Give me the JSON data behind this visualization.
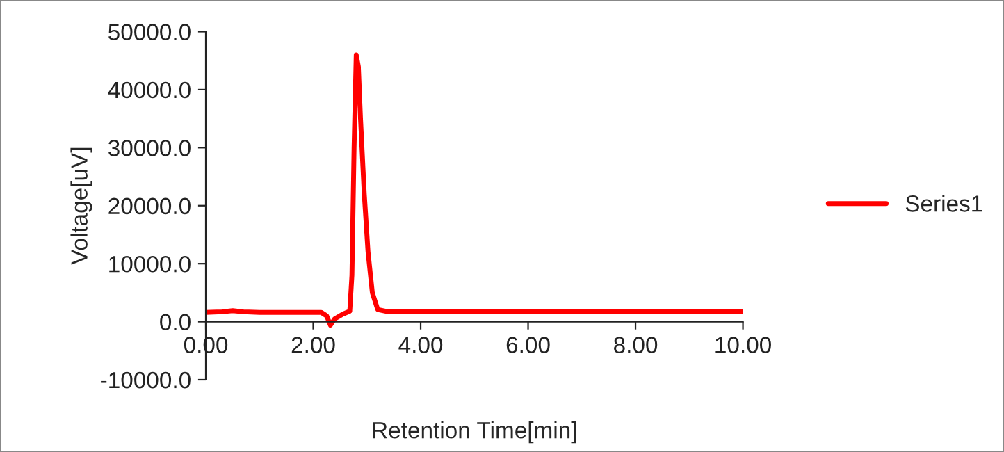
{
  "chart_data": {
    "type": "line",
    "xlabel": "Retention Time[min]",
    "ylabel": "Voltage[uV]",
    "x": [
      0,
      0.3,
      0.5,
      0.7,
      1.0,
      2.15,
      2.25,
      2.32,
      2.4,
      2.55,
      2.68,
      2.72,
      2.76,
      2.8,
      2.84,
      2.88,
      2.95,
      3.02,
      3.1,
      3.2,
      3.4,
      4.0,
      6.0,
      8.0,
      10.0
    ],
    "series": [
      {
        "name": "Series1",
        "color": "#ff0000",
        "values": [
          1600,
          1700,
          1900,
          1700,
          1600,
          1600,
          1000,
          -600,
          500,
          1300,
          1800,
          8000,
          30000,
          46000,
          44000,
          35000,
          22000,
          12000,
          5000,
          2100,
          1700,
          1700,
          1800,
          1800,
          1800
        ]
      }
    ],
    "xlim": [
      0,
      10
    ],
    "ylim": [
      -10000,
      50000
    ],
    "xticks": [
      {
        "value": 0,
        "label": "0.00"
      },
      {
        "value": 2,
        "label": "2.00"
      },
      {
        "value": 4,
        "label": "4.00"
      },
      {
        "value": 6,
        "label": "6.00"
      },
      {
        "value": 8,
        "label": "8.00"
      },
      {
        "value": 10,
        "label": "10.00"
      }
    ],
    "yticks": [
      {
        "value": -10000,
        "label": "-10000.0"
      },
      {
        "value": 0,
        "label": "0.0"
      },
      {
        "value": 10000,
        "label": "10000.0"
      },
      {
        "value": 20000,
        "label": "20000.0"
      },
      {
        "value": 30000,
        "label": "30000.0"
      },
      {
        "value": 40000,
        "label": "40000.0"
      },
      {
        "value": 50000,
        "label": "50000.0"
      }
    ],
    "grid": false,
    "legend": "right",
    "marker": "none",
    "line_style": "solid"
  }
}
